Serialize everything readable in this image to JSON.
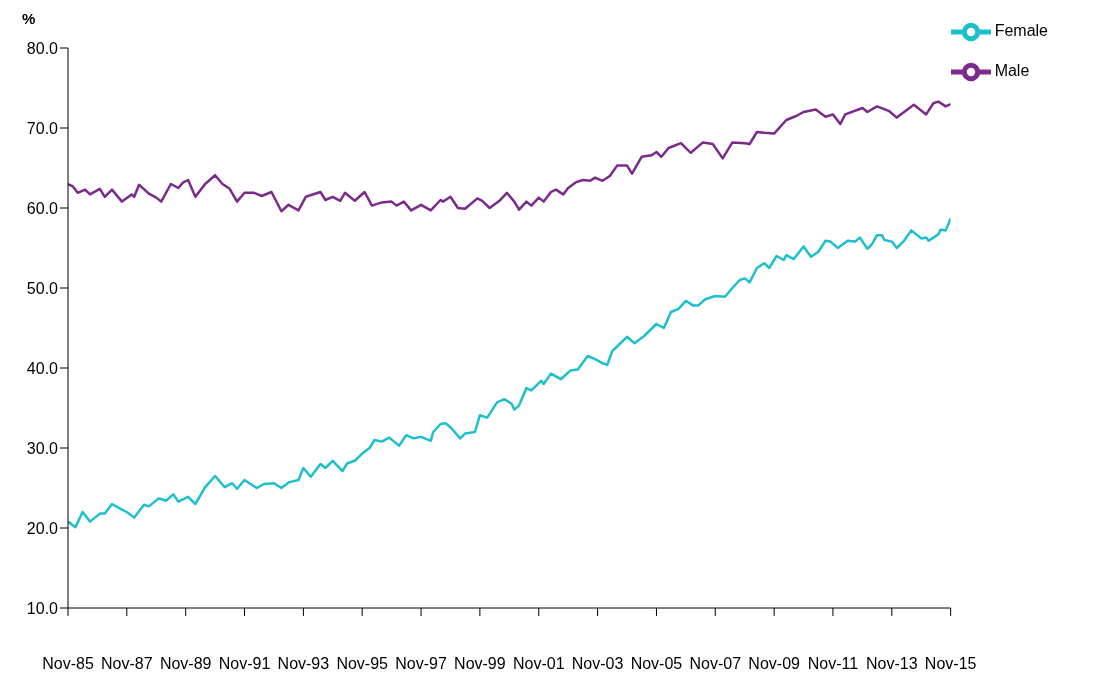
{
  "chart_data": {
    "type": "line",
    "ylabel": "%",
    "ylim": [
      10,
      80
    ],
    "yticks": [
      {
        "value": 10,
        "label": "10.0"
      },
      {
        "value": 20,
        "label": "20.0"
      },
      {
        "value": 30,
        "label": "30.0"
      },
      {
        "value": 40,
        "label": "40.0"
      },
      {
        "value": 50,
        "label": "50.0"
      },
      {
        "value": 60,
        "label": "60.0"
      },
      {
        "value": 70,
        "label": "70.0"
      },
      {
        "value": 80,
        "label": "80.0"
      }
    ],
    "xlim": [
      "1985-11",
      "2015-11"
    ],
    "xticks": [
      {
        "value": "1985-11",
        "label": "Nov-85"
      },
      {
        "value": "1987-11",
        "label": "Nov-87"
      },
      {
        "value": "1989-11",
        "label": "Nov-89"
      },
      {
        "value": "1991-11",
        "label": "Nov-91"
      },
      {
        "value": "1993-11",
        "label": "Nov-93"
      },
      {
        "value": "1995-11",
        "label": "Nov-95"
      },
      {
        "value": "1997-11",
        "label": "Nov-97"
      },
      {
        "value": "1999-11",
        "label": "Nov-99"
      },
      {
        "value": "2001-11",
        "label": "Nov-01"
      },
      {
        "value": "2003-11",
        "label": "Nov-03"
      },
      {
        "value": "2005-11",
        "label": "Nov-05"
      },
      {
        "value": "2007-11",
        "label": "Nov-07"
      },
      {
        "value": "2009-11",
        "label": "Nov-09"
      },
      {
        "value": "2011-11",
        "label": "Nov-11"
      },
      {
        "value": "2013-11",
        "label": "Nov-13"
      },
      {
        "value": "2015-11",
        "label": "Nov-15"
      }
    ],
    "grid": false,
    "legend": "top right",
    "marker": "none",
    "line_style": "solid",
    "series": [
      {
        "name": "Male",
        "color": "#7b2a8c",
        "x": [
          "1985-11",
          "1986-01",
          "1986-03",
          "1986-06",
          "1986-08",
          "1986-12",
          "1987-02",
          "1987-05",
          "1987-09",
          "1988-01",
          "1988-02",
          "1988-04",
          "1988-08",
          "1988-11",
          "1989-01",
          "1989-05",
          "1989-08",
          "1989-10",
          "1989-12",
          "1990-03",
          "1990-07",
          "1990-11",
          "1991-02",
          "1991-05",
          "1991-08",
          "1991-11",
          "1992-03",
          "1992-06",
          "1992-10",
          "1993-02",
          "1993-05",
          "1993-09",
          "1993-12",
          "1994-06",
          "1994-08",
          "1994-11",
          "1995-02",
          "1995-04",
          "1995-08",
          "1995-12",
          "1996-03",
          "1996-07",
          "1996-11",
          "1997-01",
          "1997-04",
          "1997-07",
          "1997-11",
          "1998-03",
          "1998-07",
          "1998-08",
          "1998-11",
          "1999-02",
          "1999-05",
          "1999-10",
          "1999-12",
          "2000-03",
          "2000-07",
          "2000-10",
          "2001-01",
          "2001-03",
          "2001-06",
          "2001-08",
          "2001-11",
          "2002-01",
          "2002-04",
          "2002-06",
          "2002-09",
          "2002-11",
          "2003-02",
          "2003-05",
          "2003-08",
          "2003-10",
          "2004-01",
          "2004-04",
          "2004-07",
          "2004-11",
          "2005-01",
          "2005-05",
          "2005-09",
          "2005-11",
          "2006-01",
          "2006-04",
          "2006-09",
          "2007-01",
          "2007-06",
          "2007-10",
          "2008-02",
          "2008-06",
          "2008-11",
          "2009-01",
          "2009-04",
          "2009-07",
          "2009-11",
          "2010-04",
          "2010-08",
          "2010-11",
          "2011-04",
          "2011-08",
          "2011-11",
          "2012-02",
          "2012-04",
          "2012-11",
          "2013-01",
          "2013-05",
          "2013-10",
          "2014-01",
          "2014-08",
          "2015-01",
          "2015-04",
          "2015-06",
          "2015-09",
          "2015-11"
        ],
        "values": [
          63.0,
          62.7,
          61.9,
          62.3,
          61.7,
          62.4,
          61.4,
          62.3,
          60.8,
          61.7,
          61.4,
          62.9,
          61.8,
          61.3,
          60.8,
          63.0,
          62.5,
          63.2,
          63.5,
          61.4,
          63.0,
          64.1,
          63.0,
          62.4,
          60.8,
          61.9,
          61.9,
          61.5,
          62.0,
          59.6,
          60.4,
          59.7,
          61.4,
          62.0,
          61.0,
          61.4,
          60.9,
          61.9,
          60.9,
          62.0,
          60.3,
          60.7,
          60.8,
          60.3,
          60.8,
          59.7,
          60.4,
          59.7,
          61.0,
          60.8,
          61.4,
          60.0,
          59.9,
          61.2,
          60.9,
          60.0,
          60.9,
          61.9,
          60.8,
          59.8,
          60.8,
          60.3,
          61.3,
          60.8,
          62.0,
          62.3,
          61.7,
          62.5,
          63.2,
          63.5,
          63.4,
          63.8,
          63.4,
          64.0,
          65.3,
          65.3,
          64.3,
          66.4,
          66.6,
          67.0,
          66.4,
          67.5,
          68.1,
          66.9,
          68.2,
          68.0,
          66.2,
          68.2,
          68.1,
          68.0,
          69.5,
          69.4,
          69.3,
          71.0,
          71.5,
          72.0,
          72.3,
          71.4,
          71.7,
          70.5,
          71.7,
          72.5,
          72.0,
          72.7,
          72.1,
          71.3,
          72.9,
          71.7,
          73.1,
          73.3,
          72.7,
          73.0
        ]
      },
      {
        "name": "Female",
        "color": "#1cbfcc",
        "x": [
          "1985-11",
          "1986-02",
          "1986-05",
          "1986-08",
          "1986-12",
          "1987-02",
          "1987-05",
          "1987-09",
          "1987-11",
          "1988-02",
          "1988-06",
          "1988-08",
          "1988-12",
          "1989-03",
          "1989-06",
          "1989-08",
          "1989-12",
          "1990-03",
          "1990-07",
          "1990-11",
          "1991-03",
          "1991-06",
          "1991-08",
          "1991-11",
          "1992-04",
          "1992-07",
          "1992-11",
          "1993-02",
          "1993-05",
          "1993-09",
          "1993-11",
          "1994-02",
          "1994-06",
          "1994-08",
          "1994-11",
          "1995-03",
          "1995-05",
          "1995-08",
          "1995-11",
          "1996-02",
          "1996-04",
          "1996-07",
          "1996-10",
          "1997-02",
          "1997-05",
          "1997-08",
          "1997-11",
          "1998-03",
          "1998-04",
          "1998-07",
          "1998-09",
          "1998-11",
          "1999-03",
          "1999-05",
          "1999-09",
          "1999-11",
          "2000-02",
          "2000-06",
          "2000-09",
          "2000-12",
          "2001-01",
          "2001-03",
          "2001-06",
          "2001-08",
          "2001-12",
          "2002-01",
          "2002-04",
          "2002-08",
          "2002-12",
          "2003-03",
          "2003-07",
          "2003-10",
          "2004-01",
          "2004-03",
          "2004-05",
          "2004-08",
          "2004-11",
          "2005-02",
          "2005-06",
          "2005-11",
          "2006-02",
          "2006-05",
          "2006-08",
          "2006-11",
          "2007-02",
          "2007-04",
          "2007-07",
          "2007-11",
          "2008-03",
          "2008-06",
          "2008-09",
          "2008-11",
          "2009-01",
          "2009-04",
          "2009-07",
          "2009-09",
          "2009-12",
          "2010-03",
          "2010-04",
          "2010-07",
          "2010-11",
          "2011-02",
          "2011-05",
          "2011-08",
          "2011-10",
          "2012-01",
          "2012-05",
          "2012-08",
          "2012-10",
          "2013-01",
          "2013-03",
          "2013-05",
          "2013-07",
          "2013-08",
          "2013-11",
          "2014-01",
          "2014-04",
          "2014-07",
          "2014-11",
          "2015-01",
          "2015-02",
          "2015-06",
          "2015-07",
          "2015-09",
          "2015-11"
        ],
        "values": [
          20.8,
          20.1,
          22.0,
          20.8,
          21.8,
          21.8,
          23.0,
          22.3,
          22.0,
          21.3,
          22.9,
          22.7,
          23.7,
          23.4,
          24.2,
          23.3,
          23.9,
          23.0,
          25.1,
          26.5,
          25.1,
          25.6,
          24.9,
          26.0,
          25.0,
          25.5,
          25.6,
          25.0,
          25.7,
          26.0,
          27.5,
          26.4,
          28.0,
          27.5,
          28.4,
          27.1,
          28.1,
          28.4,
          29.3,
          30.0,
          31.0,
          30.8,
          31.3,
          30.3,
          31.6,
          31.2,
          31.4,
          30.9,
          32.0,
          33.0,
          33.1,
          32.6,
          31.2,
          31.8,
          32.0,
          34.1,
          33.8,
          35.7,
          36.1,
          35.5,
          34.8,
          35.3,
          37.5,
          37.2,
          38.4,
          38.0,
          39.3,
          38.6,
          39.7,
          39.8,
          41.5,
          41.1,
          40.6,
          40.4,
          42.1,
          43.0,
          43.9,
          43.1,
          44.0,
          45.5,
          45.0,
          47.0,
          47.4,
          48.4,
          47.8,
          47.8,
          48.6,
          49.0,
          48.9,
          50.0,
          51.0,
          51.2,
          50.7,
          52.5,
          53.1,
          52.5,
          54.0,
          53.5,
          54.1,
          53.6,
          55.2,
          53.9,
          54.5,
          55.9,
          55.8,
          55.0,
          55.9,
          55.8,
          56.3,
          54.9,
          55.5,
          56.6,
          56.6,
          56.0,
          55.8,
          55.0,
          55.9,
          57.2,
          56.2,
          56.3,
          55.9,
          56.7,
          57.3,
          57.2,
          58.7
        ]
      }
    ]
  }
}
